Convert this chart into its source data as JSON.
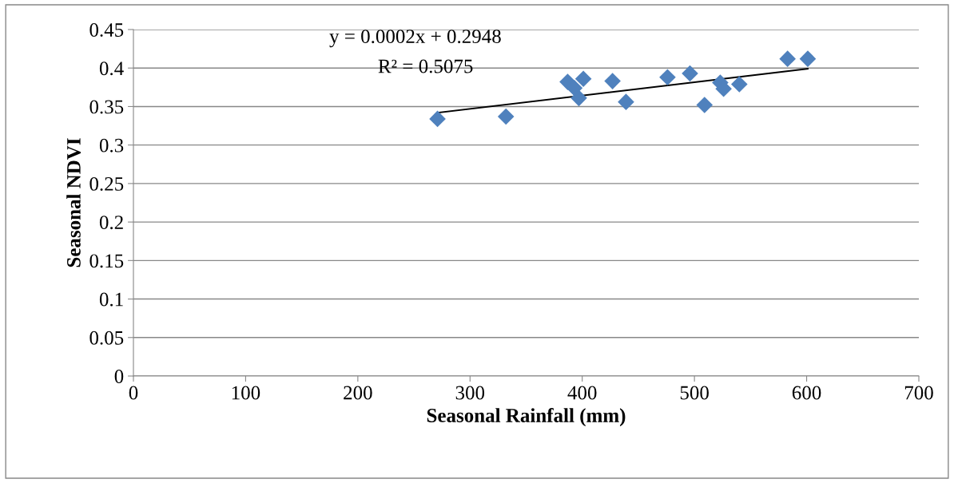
{
  "chart_data": {
    "type": "scatter",
    "xlabel": "Seasonal Rainfall (mm)",
    "ylabel": "Seasonal NDVI",
    "x": [
      271,
      332,
      387,
      393,
      397,
      401,
      427,
      439,
      476,
      496,
      509,
      523,
      526,
      540,
      583,
      601
    ],
    "series": [
      {
        "color": "#4f81bd",
        "marker": "diamond",
        "values": [
          0.334,
          0.337,
          0.382,
          0.374,
          0.361,
          0.386,
          0.383,
          0.356,
          0.388,
          0.393,
          0.352,
          0.381,
          0.373,
          0.379,
          0.412,
          0.412
        ]
      },
      {
        "type": "line",
        "color": "#000000",
        "marker": "none",
        "line_style": "solid",
        "x": [
          271,
          601
        ],
        "values": [
          0.342,
          0.399
        ]
      }
    ],
    "annotations": [
      "y = 0.0002x + 0.2948",
      "R² = 0.5075"
    ],
    "xlim": [
      0,
      700
    ],
    "xticks": [
      0,
      100,
      200,
      300,
      400,
      500,
      600,
      700
    ],
    "ylim": [
      0,
      0.45
    ],
    "yticks": [
      0,
      0.05,
      0.1,
      0.15,
      0.2,
      0.25,
      0.3,
      0.35,
      0.4,
      0.45
    ],
    "grid": "y"
  }
}
